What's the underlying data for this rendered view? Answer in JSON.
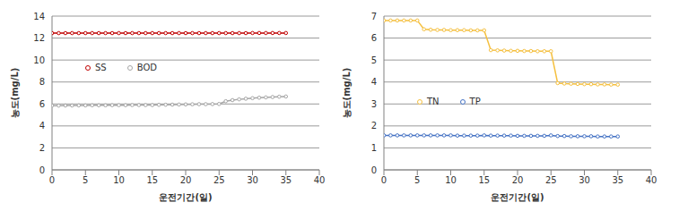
{
  "chart_data": [
    {
      "type": "line",
      "x_label": "운전기간(일)",
      "y_label": "농도(mg/L)",
      "x": [
        0,
        1,
        2,
        3,
        4,
        5,
        6,
        7,
        8,
        9,
        10,
        11,
        12,
        13,
        14,
        15,
        16,
        17,
        18,
        19,
        20,
        21,
        22,
        23,
        24,
        25,
        26,
        27,
        28,
        29,
        30,
        31,
        32,
        33,
        34,
        35
      ],
      "series": [
        {
          "name": "SS",
          "color": "#c00000",
          "values": [
            12.45,
            12.45,
            12.45,
            12.45,
            12.45,
            12.45,
            12.45,
            12.45,
            12.45,
            12.45,
            12.45,
            12.45,
            12.45,
            12.45,
            12.45,
            12.45,
            12.45,
            12.45,
            12.45,
            12.45,
            12.45,
            12.45,
            12.45,
            12.45,
            12.45,
            12.45,
            12.45,
            12.45,
            12.45,
            12.45,
            12.46,
            12.46,
            12.46,
            12.46,
            12.46,
            12.46
          ]
        },
        {
          "name": "BOD",
          "color": "#a6a6a6",
          "values": [
            5.85,
            5.85,
            5.86,
            5.86,
            5.87,
            5.87,
            5.88,
            5.88,
            5.88,
            5.89,
            5.89,
            5.89,
            5.9,
            5.9,
            5.9,
            5.9,
            5.92,
            5.93,
            5.94,
            5.95,
            5.96,
            5.97,
            5.98,
            5.98,
            5.99,
            6.0,
            6.25,
            6.35,
            6.42,
            6.48,
            6.53,
            6.57,
            6.6,
            6.63,
            6.66,
            6.68
          ]
        }
      ],
      "xlim": [
        0,
        40
      ],
      "xticks": [
        0,
        5,
        10,
        15,
        20,
        25,
        30,
        35,
        40
      ],
      "ylim": [
        0,
        14
      ],
      "yticks": [
        0,
        2,
        4,
        6,
        8,
        10,
        12,
        14
      ],
      "grid": true,
      "legend": "left",
      "marker": "circle"
    },
    {
      "type": "line",
      "x_label": "운전기간(일)",
      "y_label": "농도(mg/L)",
      "x": [
        0,
        1,
        2,
        3,
        4,
        5,
        6,
        7,
        8,
        9,
        10,
        11,
        12,
        13,
        14,
        15,
        16,
        17,
        18,
        19,
        20,
        21,
        22,
        23,
        24,
        25,
        26,
        27,
        28,
        29,
        30,
        31,
        32,
        33,
        34,
        35
      ],
      "series": [
        {
          "name": "TN",
          "color": "#f5c040",
          "values": [
            6.8,
            6.8,
            6.8,
            6.8,
            6.8,
            6.8,
            6.4,
            6.38,
            6.37,
            6.37,
            6.36,
            6.36,
            6.36,
            6.35,
            6.35,
            6.35,
            5.45,
            5.44,
            5.43,
            5.42,
            5.42,
            5.41,
            5.41,
            5.4,
            5.4,
            5.4,
            3.95,
            3.93,
            3.92,
            3.91,
            3.9,
            3.9,
            3.89,
            3.89,
            3.88,
            3.88
          ]
        },
        {
          "name": "TP",
          "color": "#4472c4",
          "values": [
            1.57,
            1.57,
            1.57,
            1.57,
            1.57,
            1.57,
            1.57,
            1.57,
            1.57,
            1.57,
            1.57,
            1.56,
            1.56,
            1.56,
            1.56,
            1.57,
            1.56,
            1.56,
            1.56,
            1.56,
            1.55,
            1.55,
            1.55,
            1.55,
            1.55,
            1.57,
            1.54,
            1.54,
            1.53,
            1.53,
            1.53,
            1.53,
            1.52,
            1.52,
            1.52,
            1.52
          ]
        }
      ],
      "xlim": [
        0,
        40
      ],
      "xticks": [
        0,
        5,
        10,
        15,
        20,
        25,
        30,
        35,
        40
      ],
      "ylim": [
        0,
        7
      ],
      "yticks": [
        0,
        1,
        2,
        3,
        4,
        5,
        6,
        7
      ],
      "grid": true,
      "legend": "left",
      "marker": "circle"
    }
  ]
}
